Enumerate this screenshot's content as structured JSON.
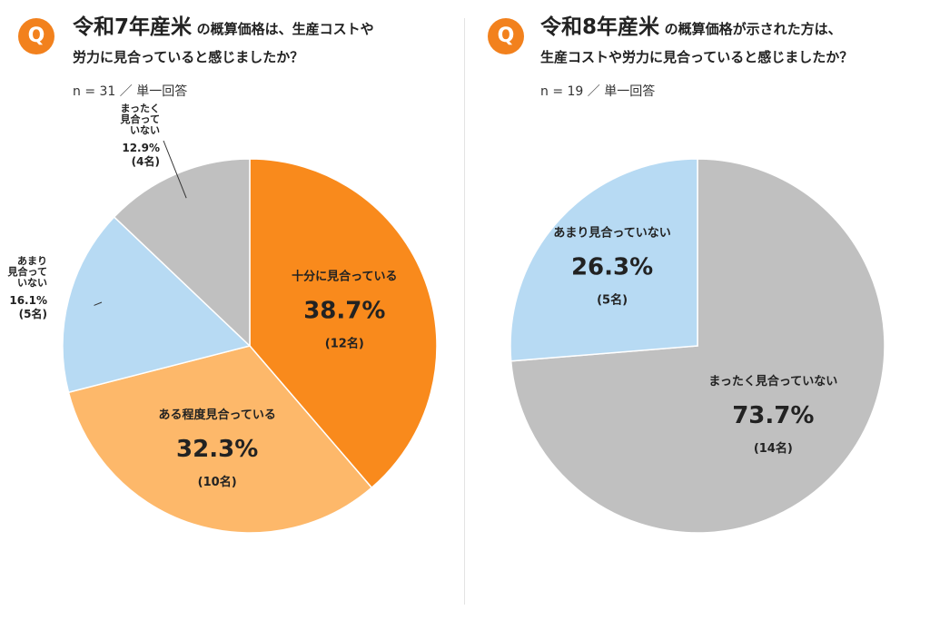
{
  "panels": [
    {
      "title_big": "令和7年産米",
      "title_small": "の概算価格は、生産コストや",
      "title_line2": "労力に見合っていると感じましたか？",
      "sample": "n = 31 ／ 単一回答"
    },
    {
      "title_big": "令和8年産米",
      "title_small": "の概算価格が示された方は、",
      "title_line2": "生産コストや労力に見合っていると感じましたか？",
      "sample": "n = 19 ／ 単一回答"
    }
  ],
  "badge": "Q",
  "colors": {
    "accent": "#f2811d",
    "orange_dark": "#f98a1c",
    "orange_light": "#fdb86a",
    "blue_light": "#b7daf3",
    "gray": "#c0c0c0"
  },
  "chart_data": [
    {
      "type": "pie",
      "title": "令和7年産米の概算価格は、生産コストや労力に見合っていると感じましたか？",
      "slices": [
        {
          "label": "十分に見合っている",
          "value": 38.7,
          "count": "(12名)",
          "color": "#f98a1c"
        },
        {
          "label": "ある程度見合っている",
          "value": 32.3,
          "count": "(10名)",
          "color": "#fdb86a"
        },
        {
          "label": "あまり見合っていない",
          "value": 16.1,
          "count": "(5名)",
          "color": "#b7daf3"
        },
        {
          "label": "まったく見合っていない",
          "value": 12.9,
          "count": "(4名)",
          "color": "#c0c0c0"
        }
      ]
    },
    {
      "type": "pie",
      "title": "令和8年産米の概算価格が示された方は、生産コストや労力に見合っていると感じましたか？",
      "slices": [
        {
          "label": "まったく見合っていない",
          "value": 73.7,
          "count": "(14名)",
          "color": "#c0c0c0"
        },
        {
          "label": "あまり見合っていない",
          "value": 26.3,
          "count": "(5名)",
          "color": "#b7daf3"
        }
      ]
    }
  ]
}
